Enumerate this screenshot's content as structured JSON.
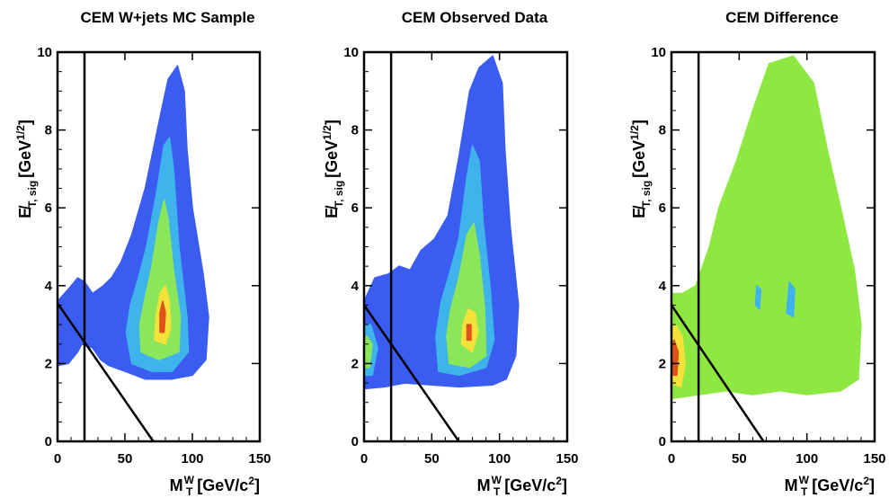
{
  "chart_data": [
    {
      "type": "heatmap",
      "title": "CEM W+jets MC Sample",
      "xlabel": {
        "main": "M",
        "sub": "T",
        "sup": "W",
        "unit": "[GeV/c",
        "unit_sup": "2",
        "unit_close": "]"
      },
      "ylabel": {
        "main": "E̸",
        "sub": "T, sig",
        "unit": "[GeV",
        "unit_sup": "1/2",
        "unit_close": "]"
      },
      "xlim": [
        0,
        150
      ],
      "ylim": [
        0,
        10
      ],
      "xticks": [
        0,
        50,
        100,
        150
      ],
      "yticks": [
        0,
        2,
        4,
        6,
        8,
        10
      ],
      "cut_lines": [
        {
          "x1": 20,
          "y1": 0,
          "x2": 20,
          "y2": 10
        },
        {
          "x1": 0,
          "y1": 3.55,
          "x2": 71,
          "y2": 0
        }
      ],
      "blobs": [
        {
          "color": "#3a5cf0",
          "points": [
            [
              0,
              1.95
            ],
            [
              8,
              2.0
            ],
            [
              15,
              2.3
            ],
            [
              18,
              2.5
            ],
            [
              26,
              2.4
            ],
            [
              32,
              2.1
            ],
            [
              38,
              1.95
            ],
            [
              50,
              1.8
            ],
            [
              65,
              1.6
            ],
            [
              85,
              1.6
            ],
            [
              100,
              1.7
            ],
            [
              110,
              2.1
            ],
            [
              112,
              3.2
            ],
            [
              108,
              4.3
            ],
            [
              100,
              6
            ],
            [
              96,
              7.5
            ],
            [
              94,
              9.0
            ],
            [
              89,
              9.65
            ],
            [
              82,
              9.3
            ],
            [
              74,
              8.0
            ],
            [
              65,
              6.5
            ],
            [
              55,
              5.3
            ],
            [
              47,
              4.6
            ],
            [
              40,
              4.2
            ],
            [
              34,
              4.0
            ],
            [
              26,
              3.8
            ],
            [
              20,
              4.1
            ],
            [
              15,
              4.2
            ],
            [
              9,
              3.95
            ],
            [
              0,
              3.6
            ]
          ]
        },
        {
          "color": "#3fb3ec",
          "points": [
            [
              55,
              2.0
            ],
            [
              70,
              1.8
            ],
            [
              85,
              1.8
            ],
            [
              97,
              2.3
            ],
            [
              96,
              3.2
            ],
            [
              90,
              5.0
            ],
            [
              86,
              7.0
            ],
            [
              83,
              7.8
            ],
            [
              79,
              7.6
            ],
            [
              73,
              6.3
            ],
            [
              66,
              5.0
            ],
            [
              60,
              4.2
            ],
            [
              54,
              3.5
            ],
            [
              51,
              2.8
            ]
          ]
        },
        {
          "color": "#8be65a",
          "points": [
            [
              62,
              2.3
            ],
            [
              75,
              2.1
            ],
            [
              90,
              2.3
            ],
            [
              91,
              3.2
            ],
            [
              86,
              4.4
            ],
            [
              82,
              5.7
            ],
            [
              79,
              6.2
            ],
            [
              75,
              5.6
            ],
            [
              70,
              4.5
            ],
            [
              65,
              3.7
            ],
            [
              61,
              3.0
            ]
          ]
        },
        {
          "color": "#f2e23a",
          "points": [
            [
              72,
              2.6
            ],
            [
              80,
              2.5
            ],
            [
              84,
              2.9
            ],
            [
              83,
              3.6
            ],
            [
              80,
              4.0
            ],
            [
              76,
              3.8
            ],
            [
              73,
              3.2
            ]
          ]
        },
        {
          "color": "#e0501a",
          "points": [
            [
              76,
              2.8
            ],
            [
              79,
              2.8
            ],
            [
              80,
              3.3
            ],
            [
              78,
              3.6
            ],
            [
              76,
              3.3
            ]
          ]
        }
      ]
    },
    {
      "type": "heatmap",
      "title": "CEM Observed Data",
      "xlabel": {
        "main": "M",
        "sub": "T",
        "sup": "W",
        "unit": "[GeV/c",
        "unit_sup": "2",
        "unit_close": "]"
      },
      "ylabel": {
        "main": "E̸",
        "sub": "T, sig",
        "unit": "[GeV",
        "unit_sup": "1/2",
        "unit_close": "]"
      },
      "xlim": [
        0,
        150
      ],
      "ylim": [
        0,
        10
      ],
      "xticks": [
        0,
        50,
        100,
        150
      ],
      "yticks": [
        0,
        2,
        4,
        6,
        8,
        10
      ],
      "cut_lines": [
        {
          "x1": 20,
          "y1": 0,
          "x2": 20,
          "y2": 10
        },
        {
          "x1": 0,
          "y1": 3.5,
          "x2": 70,
          "y2": 0
        }
      ],
      "blobs": [
        {
          "color": "#3a5cf0",
          "points": [
            [
              0,
              1.35
            ],
            [
              15,
              1.4
            ],
            [
              30,
              1.5
            ],
            [
              50,
              1.45
            ],
            [
              70,
              1.4
            ],
            [
              95,
              1.45
            ],
            [
              105,
              1.6
            ],
            [
              112,
              2.2
            ],
            [
              114,
              3.5
            ],
            [
              108,
              5.5
            ],
            [
              104,
              7.5
            ],
            [
              102,
              9.2
            ],
            [
              95,
              9.9
            ],
            [
              85,
              9.6
            ],
            [
              78,
              9.0
            ],
            [
              70,
              7.3
            ],
            [
              62,
              5.8
            ],
            [
              52,
              5.2
            ],
            [
              42,
              4.9
            ],
            [
              34,
              4.4
            ],
            [
              26,
              4.5
            ],
            [
              18,
              4.3
            ],
            [
              8,
              4.2
            ],
            [
              0,
              3.6
            ]
          ]
        },
        {
          "color": "#3fb3ec",
          "points": [
            [
              0,
              1.7
            ],
            [
              6,
              1.7
            ],
            [
              10,
              2.4
            ],
            [
              5,
              3.0
            ],
            [
              0,
              3.0
            ]
          ]
        },
        {
          "color": "#3fb3ec",
          "points": [
            [
              55,
              1.8
            ],
            [
              70,
              1.7
            ],
            [
              90,
              1.9
            ],
            [
              96,
              2.6
            ],
            [
              93,
              4.0
            ],
            [
              88,
              5.6
            ],
            [
              85,
              7.2
            ],
            [
              80,
              7.6
            ],
            [
              76,
              6.8
            ],
            [
              70,
              5.2
            ],
            [
              63,
              4.3
            ],
            [
              57,
              3.6
            ],
            [
              53,
              2.7
            ]
          ]
        },
        {
          "color": "#8be65a",
          "points": [
            [
              63,
              2.0
            ],
            [
              78,
              1.9
            ],
            [
              90,
              2.2
            ],
            [
              89,
              3.4
            ],
            [
              85,
              4.8
            ],
            [
              81,
              5.6
            ],
            [
              76,
              5.3
            ],
            [
              70,
              4.2
            ],
            [
              64,
              3.4
            ],
            [
              61,
              2.7
            ]
          ]
        },
        {
          "color": "#8be65a",
          "points": [
            [
              0,
              1.9
            ],
            [
              4,
              1.9
            ],
            [
              6,
              2.5
            ],
            [
              2,
              2.7
            ],
            [
              0,
              2.6
            ]
          ]
        },
        {
          "color": "#f2e23a",
          "points": [
            [
              72,
              2.5
            ],
            [
              80,
              2.3
            ],
            [
              84,
              2.8
            ],
            [
              82,
              3.3
            ],
            [
              77,
              3.4
            ],
            [
              73,
              3.0
            ]
          ]
        },
        {
          "color": "#e0501a",
          "points": [
            [
              76,
              2.6
            ],
            [
              79,
              2.6
            ],
            [
              79,
              3.0
            ],
            [
              76,
              3.0
            ]
          ]
        }
      ]
    },
    {
      "type": "heatmap",
      "title": "CEM Difference",
      "xlabel": {
        "main": "M",
        "sub": "T",
        "sup": "W",
        "unit": "[GeV/c",
        "unit_sup": "2",
        "unit_close": "]"
      },
      "ylabel": {
        "main": "E̸",
        "sub": "T, sig",
        "unit": "[GeV",
        "unit_sup": "1/2",
        "unit_close": "]"
      },
      "xlim": [
        0,
        150
      ],
      "ylim": [
        0,
        10
      ],
      "xticks": [
        0,
        50,
        100,
        150
      ],
      "yticks": [
        0,
        2,
        4,
        6,
        8,
        10
      ],
      "cut_lines": [
        {
          "x1": 20,
          "y1": 0,
          "x2": 20,
          "y2": 10
        },
        {
          "x1": 0,
          "y1": 3.5,
          "x2": 68,
          "y2": 0
        }
      ],
      "blobs": [
        {
          "color": "#8fe842",
          "points": [
            [
              0,
              1.1
            ],
            [
              20,
              1.2
            ],
            [
              40,
              1.3
            ],
            [
              60,
              1.2
            ],
            [
              80,
              1.3
            ],
            [
              100,
              1.2
            ],
            [
              125,
              1.3
            ],
            [
              138,
              1.6
            ],
            [
              140,
              3.0
            ],
            [
              135,
              4.4
            ],
            [
              125,
              6.0
            ],
            [
              115,
              7.5
            ],
            [
              105,
              9.2
            ],
            [
              90,
              9.9
            ],
            [
              72,
              9.7
            ],
            [
              60,
              8.5
            ],
            [
              48,
              7.2
            ],
            [
              35,
              6.0
            ],
            [
              28,
              5.0
            ],
            [
              18,
              4.0
            ],
            [
              8,
              3.8
            ],
            [
              0,
              3.8
            ]
          ]
        },
        {
          "color": "#f2e23a",
          "points": [
            [
              0,
              1.5
            ],
            [
              7,
              1.4
            ],
            [
              10,
              2.0
            ],
            [
              8,
              2.7
            ],
            [
              3,
              3.0
            ],
            [
              0,
              2.9
            ]
          ]
        },
        {
          "color": "#e0501a",
          "points": [
            [
              0,
              1.7
            ],
            [
              4,
              1.7
            ],
            [
              5,
              2.3
            ],
            [
              2,
              2.6
            ],
            [
              0,
              2.5
            ]
          ]
        },
        {
          "color": "#3fb3ec",
          "points": [
            [
              85,
              3.3
            ],
            [
              90,
              3.2
            ],
            [
              91,
              3.9
            ],
            [
              87,
              4.1
            ]
          ]
        },
        {
          "color": "#3fb3ec",
          "points": [
            [
              62,
              3.5
            ],
            [
              65,
              3.4
            ],
            [
              66,
              3.9
            ],
            [
              63,
              4.0
            ]
          ]
        }
      ]
    }
  ]
}
